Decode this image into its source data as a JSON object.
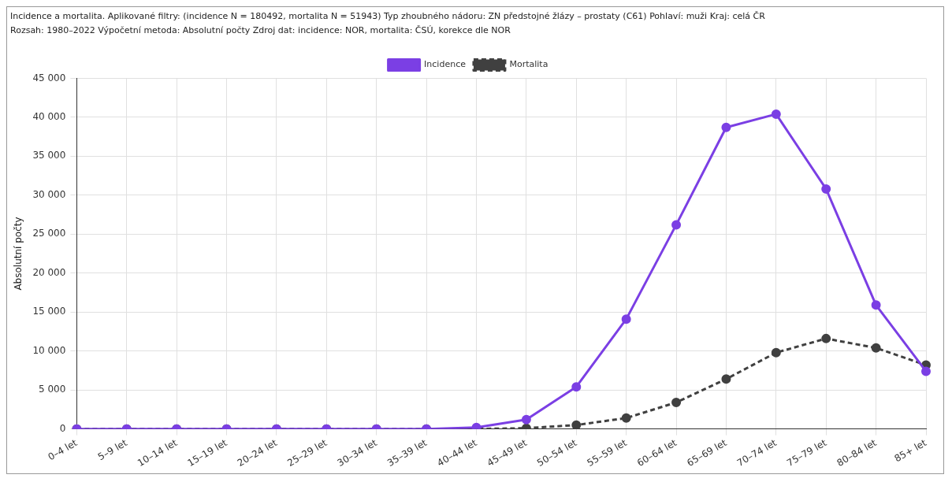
{
  "chart_data": {
    "type": "line",
    "title": "Incidence a mortalita. Aplikované filtry: (incidence N = 180492, mortalita N = 51943) Typ zhoubného nádoru: ZN předstojné žlázy – prostaty (C61) Pohlaví: muži Kraj: celá ČR",
    "subtitle": "Rozsah: 1980–2022 Výpočetní metoda: Absolutní počty Zdroj dat: incidence: NOR, mortalita: ČSÚ, korekce dle NOR",
    "ylabel": "Absolutní počty",
    "categories": [
      "0–4 let",
      "5–9 let",
      "10–14 let",
      "15–19 let",
      "20–24 let",
      "25–29 let",
      "30–34 let",
      "35–39 let",
      "40–44 let",
      "45–49 let",
      "50–54 let",
      "55–59 let",
      "60–64 let",
      "65–69 let",
      "70–74 let",
      "75–79 let",
      "80–84 let",
      "85+ let"
    ],
    "series": [
      {
        "name": "Incidence",
        "color": "#7b3fe4",
        "line_style": "solid",
        "values": [
          0,
          0,
          0,
          0,
          0,
          0,
          0,
          0,
          200,
          1200,
          5400,
          14100,
          26200,
          38700,
          40400,
          30800,
          15900,
          7400
        ]
      },
      {
        "name": "Mortalita",
        "color": "#404040",
        "line_style": "dashed",
        "values": [
          0,
          0,
          0,
          0,
          0,
          0,
          0,
          0,
          0,
          100,
          500,
          1400,
          3400,
          6400,
          9800,
          11600,
          10400,
          8200
        ]
      }
    ],
    "ylim": [
      0,
      45000
    ],
    "yticks": [
      {
        "value": 0,
        "label": "0"
      },
      {
        "value": 5000,
        "label": "5 000"
      },
      {
        "value": 10000,
        "label": "10 000"
      },
      {
        "value": 15000,
        "label": "15 000"
      },
      {
        "value": 20000,
        "label": "20 000"
      },
      {
        "value": 25000,
        "label": "25 000"
      },
      {
        "value": 30000,
        "label": "30 000"
      },
      {
        "value": 35000,
        "label": "35 000"
      },
      {
        "value": 40000,
        "label": "40 000"
      },
      {
        "value": 45000,
        "label": "45 000"
      }
    ],
    "grid": true,
    "legend": "top",
    "marker": "circle"
  }
}
